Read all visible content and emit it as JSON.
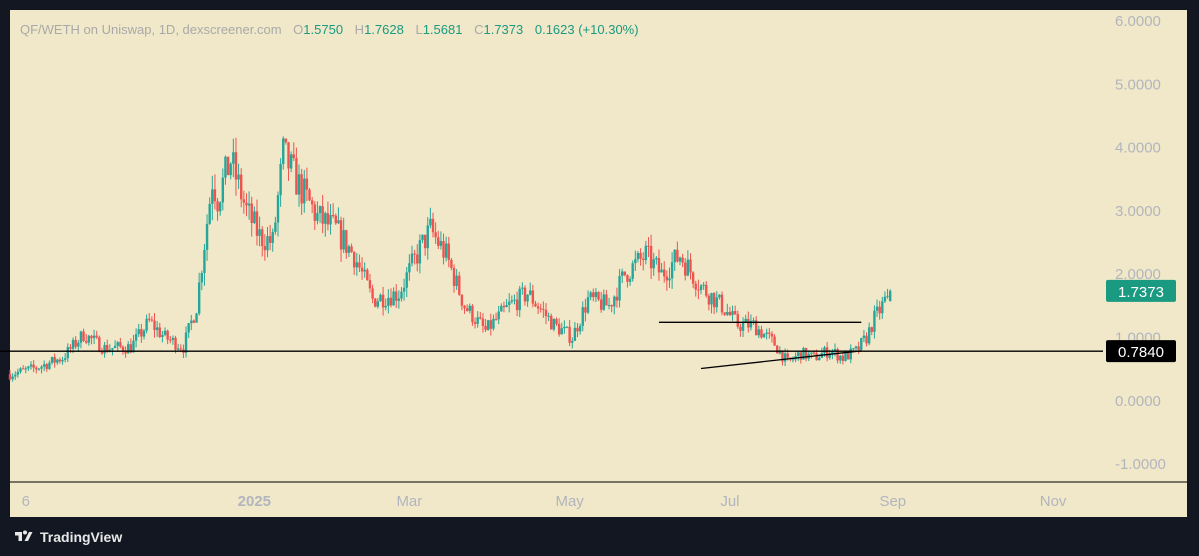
{
  "header": {
    "symbol": "QF/WETH on Uniswap, 1D, dexscreener.com",
    "open_label": "O",
    "open": "1.5750",
    "high_label": "H",
    "high": "1.7628",
    "low_label": "L",
    "low": "1.5681",
    "close_label": "C",
    "close": "1.7373",
    "change": "0.1623 (+10.30%)"
  },
  "footer": {
    "brand": "TradingView"
  },
  "colors": {
    "up": "#26a69a",
    "down": "#ef5350",
    "background": "#f0e8c8",
    "frame": "#131722",
    "axis_text": "#b2b5be",
    "last_price_badge": "#1a9a80",
    "marker_badge": "#000000"
  },
  "chart_data": {
    "type": "candlestick",
    "ylim": [
      -1.3,
      6.2
    ],
    "y_ticks": [
      "6.0000",
      "5.0000",
      "4.0000",
      "3.0000",
      "2.0000",
      "1.0000",
      "0.0000",
      "-1.0000"
    ],
    "y_tick_values": [
      6,
      5,
      4,
      3,
      2,
      1,
      0,
      -1
    ],
    "x_ticks": [
      {
        "label": "6",
        "date": "2024-10-06",
        "bold": false
      },
      {
        "label": "2025",
        "date": "2025-01-01",
        "bold": true
      },
      {
        "label": "Mar",
        "date": "2025-03-01",
        "bold": false
      },
      {
        "label": "May",
        "date": "2025-05-01",
        "bold": false
      },
      {
        "label": "Jul",
        "date": "2025-07-01",
        "bold": false
      },
      {
        "label": "Sep",
        "date": "2025-09-01",
        "bold": false
      },
      {
        "label": "Nov",
        "date": "2025-11-01",
        "bold": false
      }
    ],
    "x_range": [
      "2024-09-30",
      "2025-11-20"
    ],
    "price_markers": [
      {
        "value": 1.7373,
        "label": "1.7373",
        "kind": "last-price"
      },
      {
        "value": 0.784,
        "label": "0.7840",
        "kind": "horizontal-line"
      }
    ],
    "drawings": [
      {
        "type": "horizontal-line",
        "y": 0.784
      },
      {
        "type": "segment",
        "from": {
          "date": "2025-06-04",
          "y": 1.24
        },
        "to": {
          "date": "2025-08-20",
          "y": 1.24
        }
      },
      {
        "type": "segment",
        "from": {
          "date": "2025-06-20",
          "y": 0.51
        },
        "to": {
          "date": "2025-08-20",
          "y": 0.79
        }
      }
    ],
    "candles_anchor_closes": [
      [
        "2024-09-30",
        0.42
      ],
      [
        "2024-10-10",
        0.52
      ],
      [
        "2024-10-20",
        0.68
      ],
      [
        "2024-10-28",
        1.05
      ],
      [
        "2024-11-05",
        0.83
      ],
      [
        "2024-11-15",
        0.85
      ],
      [
        "2024-11-22",
        1.25
      ],
      [
        "2024-11-28",
        1.0
      ],
      [
        "2024-12-05",
        0.85
      ],
      [
        "2024-12-10",
        1.5
      ],
      [
        "2024-12-13",
        2.5
      ],
      [
        "2024-12-16",
        3.5
      ],
      [
        "2024-12-18",
        3.2
      ],
      [
        "2024-12-23",
        3.8
      ],
      [
        "2024-12-29",
        3.0
      ],
      [
        "2025-01-03",
        2.6
      ],
      [
        "2025-01-08",
        2.5
      ],
      [
        "2025-01-12",
        3.9
      ],
      [
        "2025-01-18",
        3.4
      ],
      [
        "2025-01-25",
        2.9
      ],
      [
        "2025-02-01",
        2.7
      ],
      [
        "2025-02-08",
        2.3
      ],
      [
        "2025-02-15",
        1.6
      ],
      [
        "2025-02-25",
        1.7
      ],
      [
        "2025-03-05",
        2.4
      ],
      [
        "2025-03-09",
        2.7
      ],
      [
        "2025-03-15",
        2.3
      ],
      [
        "2025-03-22",
        1.5
      ],
      [
        "2025-03-30",
        1.1
      ],
      [
        "2025-04-08",
        1.5
      ],
      [
        "2025-04-15",
        1.7
      ],
      [
        "2025-04-25",
        1.2
      ],
      [
        "2025-05-02",
        1.0
      ],
      [
        "2025-05-08",
        1.6
      ],
      [
        "2025-05-16",
        1.5
      ],
      [
        "2025-05-22",
        2.0
      ],
      [
        "2025-05-30",
        2.3
      ],
      [
        "2025-06-05",
        2.0
      ],
      [
        "2025-06-12",
        2.3
      ],
      [
        "2025-06-20",
        1.8
      ],
      [
        "2025-06-28",
        1.5
      ],
      [
        "2025-07-04",
        1.2
      ],
      [
        "2025-07-10",
        1.2
      ],
      [
        "2025-07-18",
        0.9
      ],
      [
        "2025-07-23",
        0.6
      ],
      [
        "2025-07-28",
        0.75
      ],
      [
        "2025-08-02",
        0.68
      ],
      [
        "2025-08-08",
        0.8
      ],
      [
        "2025-08-13",
        0.68
      ],
      [
        "2025-08-18",
        0.78
      ],
      [
        "2025-08-22",
        1.0
      ],
      [
        "2025-08-25",
        1.3
      ],
      [
        "2025-08-28",
        1.5
      ],
      [
        "2025-08-31",
        1.7373
      ]
    ]
  }
}
